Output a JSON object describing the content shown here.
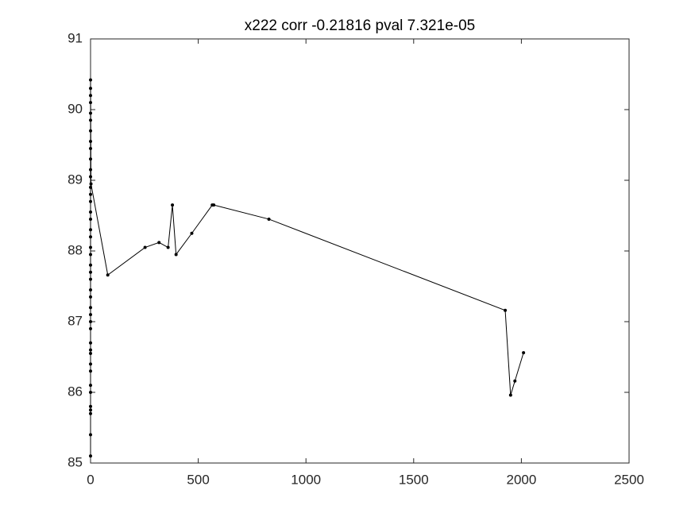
{
  "chart_data": {
    "type": "line",
    "title": "x222 corr -0.21816 pval 7.321e-05",
    "color": "#000000",
    "x": [
      0,
      0,
      0,
      0,
      0,
      0,
      0,
      0,
      0,
      0,
      0,
      0,
      0,
      0,
      0,
      0,
      0,
      0,
      0,
      0,
      0,
      0,
      0,
      0,
      0,
      0,
      0,
      0,
      0,
      0,
      0,
      0,
      0,
      0,
      0,
      0,
      0,
      0,
      0,
      0,
      0,
      0,
      2,
      80,
      253,
      318,
      360,
      380,
      397,
      470,
      565,
      572,
      828,
      1925,
      1950,
      1970,
      2010
    ],
    "values": [
      85.1,
      85.4,
      85.7,
      85.75,
      85.8,
      86.0,
      86.1,
      86.3,
      86.4,
      86.55,
      86.6,
      86.7,
      86.9,
      87.0,
      87.1,
      87.2,
      87.35,
      87.45,
      87.6,
      87.7,
      87.8,
      87.95,
      88.05,
      88.2,
      88.3,
      88.45,
      88.55,
      88.7,
      88.8,
      88.9,
      89.05,
      89.15,
      89.3,
      89.45,
      89.55,
      89.7,
      89.85,
      89.95,
      90.1,
      90.2,
      90.3,
      90.42,
      88.95,
      87.66,
      88.05,
      88.12,
      88.05,
      88.65,
      87.95,
      88.25,
      88.65,
      88.65,
      88.45,
      87.16,
      85.96,
      86.16,
      86.56
    ],
    "xlim": [
      0,
      2500
    ],
    "xticks": [
      0,
      500,
      1000,
      1500,
      2000,
      2500
    ],
    "ylim": [
      85,
      91
    ],
    "yticks": [
      85,
      86,
      87,
      88,
      89,
      90,
      91
    ]
  }
}
